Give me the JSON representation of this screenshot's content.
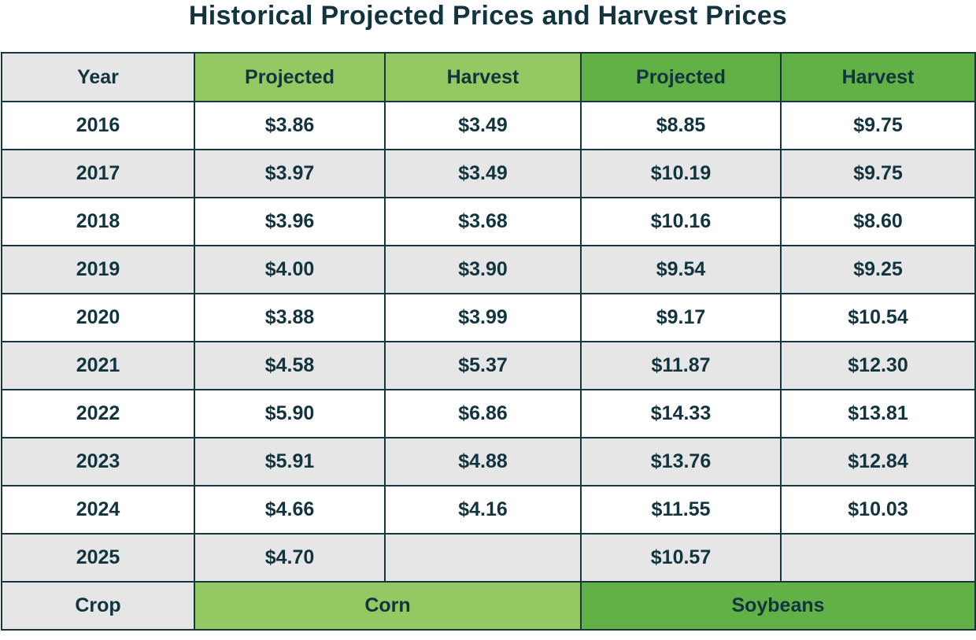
{
  "title": "Historical Projected Prices and Harvest Prices",
  "header": {
    "year": "Year",
    "corn_projected": "Projected",
    "corn_harvest": "Harvest",
    "soy_projected": "Projected",
    "soy_harvest": "Harvest"
  },
  "rows": [
    {
      "year": "2016",
      "corn_projected": "$3.86",
      "corn_harvest": "$3.49",
      "soy_projected": "$8.85",
      "soy_harvest": "$9.75"
    },
    {
      "year": "2017",
      "corn_projected": "$3.97",
      "corn_harvest": "$3.49",
      "soy_projected": "$10.19",
      "soy_harvest": "$9.75"
    },
    {
      "year": "2018",
      "corn_projected": "$3.96",
      "corn_harvest": "$3.68",
      "soy_projected": "$10.16",
      "soy_harvest": "$8.60"
    },
    {
      "year": "2019",
      "corn_projected": "$4.00",
      "corn_harvest": "$3.90",
      "soy_projected": "$9.54",
      "soy_harvest": "$9.25"
    },
    {
      "year": "2020",
      "corn_projected": "$3.88",
      "corn_harvest": "$3.99",
      "soy_projected": "$9.17",
      "soy_harvest": "$10.54"
    },
    {
      "year": "2021",
      "corn_projected": "$4.58",
      "corn_harvest": "$5.37",
      "soy_projected": "$11.87",
      "soy_harvest": "$12.30"
    },
    {
      "year": "2022",
      "corn_projected": "$5.90",
      "corn_harvest": "$6.86",
      "soy_projected": "$14.33",
      "soy_harvest": "$13.81"
    },
    {
      "year": "2023",
      "corn_projected": "$5.91",
      "corn_harvest": "$4.88",
      "soy_projected": "$13.76",
      "soy_harvest": "$12.84"
    },
    {
      "year": "2024",
      "corn_projected": "$4.66",
      "corn_harvest": "$4.16",
      "soy_projected": "$11.55",
      "soy_harvest": "$10.03"
    },
    {
      "year": "2025",
      "corn_projected": "$4.70",
      "corn_harvest": "",
      "soy_projected": "$10.57",
      "soy_harvest": ""
    }
  ],
  "footer": {
    "crop": "Crop",
    "corn": "Corn",
    "soybeans": "Soybeans"
  },
  "colors": {
    "text": "#12343f",
    "border": "#163640",
    "corn_green": "#93c963",
    "soybean_green": "#62b146",
    "row_gray": "#e6e6e7",
    "row_white": "#ffffff"
  }
}
